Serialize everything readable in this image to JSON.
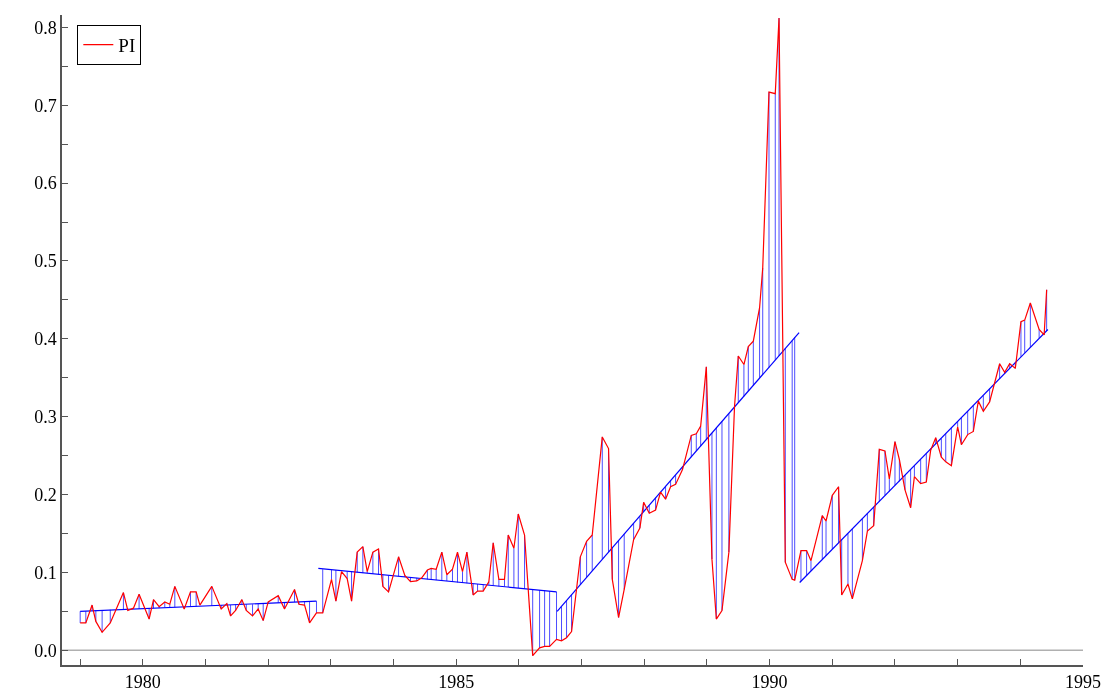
{
  "chart_data": {
    "type": "line",
    "legend": "top left",
    "grid": false,
    "marker": "none",
    "line_style": "solid",
    "xlim": [
      1978.71,
      1995
    ],
    "ylim": [
      -0.019,
      0.816
    ],
    "xticks": [
      {
        "value": 1979,
        "label": null
      },
      1980,
      {
        "value": 1981,
        "label": null
      },
      {
        "value": 1982,
        "label": null
      },
      {
        "value": 1983,
        "label": null
      },
      {
        "value": 1984,
        "label": null
      },
      1985,
      {
        "value": 1986,
        "label": null
      },
      {
        "value": 1987,
        "label": null
      },
      {
        "value": 1988,
        "label": null
      },
      {
        "value": 1989,
        "label": null
      },
      1990,
      {
        "value": 1991,
        "label": null
      },
      {
        "value": 1992,
        "label": null
      },
      {
        "value": 1993,
        "label": null
      },
      {
        "value": 1994,
        "label": null
      },
      1995
    ],
    "yticks": [
      {
        "value": 0,
        "label": "0.0"
      },
      {
        "value": 0.05,
        "label": null
      },
      0.1,
      {
        "value": 0.15,
        "label": null
      },
      0.2,
      {
        "value": 0.25,
        "label": null
      },
      0.3,
      {
        "value": 0.35,
        "label": null
      },
      0.4,
      {
        "value": 0.45,
        "label": null
      },
      0.5,
      {
        "value": 0.55,
        "label": null
      },
      0.6,
      {
        "value": 0.65,
        "label": null
      },
      0.7,
      {
        "value": 0.75,
        "label": null
      },
      0.8
    ],
    "ref_lines": [
      {
        "axis": "y",
        "value": 0,
        "color": "#b0b0b0"
      }
    ],
    "series": [
      {
        "name": "PI",
        "color": "#ff0000",
        "x": [
          1979.0,
          1979.09,
          1979.19,
          1979.25,
          1979.35,
          1979.48,
          1979.69,
          1979.76,
          1979.85,
          1979.94,
          1980.1,
          1980.17,
          1980.26,
          1980.35,
          1980.43,
          1980.51,
          1980.66,
          1980.76,
          1980.85,
          1980.91,
          1981.1,
          1981.25,
          1981.34,
          1981.4,
          1981.48,
          1981.58,
          1981.65,
          1981.75,
          1981.84,
          1981.92,
          1982.0,
          1982.16,
          1982.26,
          1982.42,
          1982.49,
          1982.58,
          1982.66,
          1982.77,
          1982.87,
          1983.01,
          1983.08,
          1983.17,
          1983.26,
          1983.33,
          1983.42,
          1983.51,
          1983.58,
          1983.67,
          1983.76,
          1983.83,
          1983.92,
          1984.08,
          1984.18,
          1984.27,
          1984.37,
          1984.45,
          1984.54,
          1984.6,
          1984.68,
          1984.77,
          1984.85,
          1984.94,
          1985.02,
          1985.1,
          1985.17,
          1985.27,
          1985.34,
          1985.43,
          1985.52,
          1985.59,
          1985.68,
          1985.77,
          1985.83,
          1985.92,
          1985.99,
          1986.09,
          1986.22,
          1986.33,
          1986.41,
          1986.49,
          1986.6,
          1986.68,
          1986.76,
          1986.84,
          1986.98,
          1987.08,
          1987.17,
          1987.33,
          1987.43,
          1987.49,
          1987.59,
          1987.68,
          1987.83,
          1987.93,
          1987.99,
          1988.08,
          1988.18,
          1988.26,
          1988.34,
          1988.42,
          1988.5,
          1988.61,
          1988.75,
          1988.83,
          1988.9,
          1988.99,
          1989.08,
          1989.15,
          1989.24,
          1989.35,
          1989.44,
          1989.5,
          1989.59,
          1989.66,
          1989.74,
          1989.84,
          1989.89,
          1989.99,
          1990.09,
          1990.15,
          1990.25,
          1990.36,
          1990.4,
          1990.5,
          1990.59,
          1990.66,
          1990.84,
          1990.9,
          1991.0,
          1991.1,
          1991.15,
          1991.25,
          1991.32,
          1991.48,
          1991.56,
          1991.66,
          1991.75,
          1991.84,
          1991.91,
          1992.0,
          1992.07,
          1992.16,
          1992.25,
          1992.31,
          1992.41,
          1992.5,
          1992.57,
          1992.65,
          1992.74,
          1992.81,
          1992.9,
          1993.0,
          1993.06,
          1993.16,
          1993.25,
          1993.33,
          1993.41,
          1993.51,
          1993.67,
          1993.75,
          1993.83,
          1993.92,
          1994.01,
          1994.07,
          1994.16,
          1994.3,
          1994.38,
          1994.42
        ],
        "values": [
          0.035,
          0.035,
          0.058,
          0.037,
          0.023,
          0.035,
          0.074,
          0.051,
          0.054,
          0.072,
          0.04,
          0.065,
          0.056,
          0.062,
          0.059,
          0.082,
          0.053,
          0.075,
          0.075,
          0.058,
          0.082,
          0.053,
          0.06,
          0.044,
          0.051,
          0.065,
          0.051,
          0.044,
          0.053,
          0.038,
          0.062,
          0.07,
          0.053,
          0.078,
          0.059,
          0.058,
          0.035,
          0.048,
          0.048,
          0.091,
          0.063,
          0.101,
          0.092,
          0.063,
          0.126,
          0.133,
          0.101,
          0.126,
          0.13,
          0.082,
          0.075,
          0.12,
          0.096,
          0.088,
          0.089,
          0.093,
          0.103,
          0.105,
          0.104,
          0.126,
          0.097,
          0.104,
          0.126,
          0.101,
          0.126,
          0.071,
          0.076,
          0.076,
          0.088,
          0.138,
          0.091,
          0.091,
          0.148,
          0.131,
          0.175,
          0.148,
          -0.007,
          0.003,
          0.005,
          0.005,
          0.014,
          0.012,
          0.016,
          0.024,
          0.12,
          0.14,
          0.148,
          0.274,
          0.259,
          0.091,
          0.042,
          0.078,
          0.142,
          0.157,
          0.19,
          0.176,
          0.18,
          0.203,
          0.194,
          0.21,
          0.213,
          0.232,
          0.276,
          0.278,
          0.288,
          0.364,
          0.117,
          0.04,
          0.051,
          0.126,
          0.313,
          0.378,
          0.367,
          0.39,
          0.397,
          0.44,
          0.491,
          0.717,
          0.715,
          0.812,
          0.113,
          0.091,
          0.09,
          0.128,
          0.128,
          0.115,
          0.173,
          0.166,
          0.199,
          0.21,
          0.071,
          0.085,
          0.066,
          0.115,
          0.153,
          0.16,
          0.258,
          0.256,
          0.22,
          0.268,
          0.245,
          0.206,
          0.183,
          0.223,
          0.214,
          0.216,
          0.257,
          0.273,
          0.248,
          0.242,
          0.237,
          0.287,
          0.264,
          0.277,
          0.281,
          0.32,
          0.307,
          0.319,
          0.368,
          0.357,
          0.368,
          0.362,
          0.422,
          0.424,
          0.446,
          0.412,
          0.405,
          0.463
        ],
        "errors": [
          [
            0.035,
            0.05
          ],
          [
            0.035,
            0.05
          ],
          [
            0.051,
            0.058
          ],
          [
            0.037,
            0.051
          ],
          [
            0.023,
            0.051
          ],
          [
            0.035,
            0.052
          ],
          [
            0.052,
            0.074
          ],
          [
            0.051,
            0.053
          ],
          null,
          [
            0.053,
            0.072
          ],
          [
            0.04,
            0.054
          ],
          [
            0.054,
            0.065
          ],
          [
            0.054,
            0.056
          ],
          [
            0.055,
            0.062
          ],
          [
            0.055,
            0.059
          ],
          [
            0.055,
            0.082
          ],
          [
            0.053,
            0.056
          ],
          [
            0.056,
            0.075
          ],
          [
            0.056,
            0.075
          ],
          null,
          [
            0.057,
            0.082
          ],
          [
            0.053,
            0.058
          ],
          [
            0.058,
            0.06
          ],
          [
            0.044,
            0.058
          ],
          [
            0.051,
            0.059
          ],
          [
            0.059,
            0.065
          ],
          [
            0.051,
            0.059
          ],
          [
            0.044,
            0.059
          ],
          [
            0.053,
            0.06
          ],
          [
            0.038,
            0.06
          ],
          [
            0.06,
            0.062
          ],
          [
            0.061,
            0.07
          ],
          [
            0.053,
            0.061
          ],
          [
            0.062,
            0.078
          ],
          [
            0.059,
            0.062
          ],
          [
            0.058,
            0.062
          ],
          [
            0.035,
            0.063
          ],
          [
            0.048,
            0.063
          ],
          [
            0.048,
            0.104
          ],
          [
            0.091,
            0.103
          ],
          [
            0.063,
            0.103
          ],
          null,
          [
            0.092,
            0.101
          ],
          [
            0.063,
            0.101
          ],
          [
            0.1,
            0.126
          ],
          [
            0.099,
            0.133
          ],
          [
            0.099,
            0.101
          ],
          [
            0.098,
            0.126
          ],
          [
            0.097,
            0.13
          ],
          [
            0.082,
            0.097
          ],
          [
            0.075,
            0.096
          ],
          [
            0.095,
            0.12
          ],
          [
            0.094,
            0.096
          ],
          [
            0.088,
            0.093
          ],
          [
            0.089,
            0.093
          ],
          null,
          [
            0.091,
            0.103
          ],
          [
            0.091,
            0.105
          ],
          [
            0.09,
            0.104
          ],
          [
            0.089,
            0.126
          ],
          [
            0.089,
            0.097
          ],
          [
            0.088,
            0.104
          ],
          [
            0.087,
            0.126
          ],
          [
            0.087,
            0.101
          ],
          [
            0.086,
            0.126
          ],
          [
            0.071,
            0.085
          ],
          [
            0.076,
            0.085
          ],
          [
            0.076,
            0.084
          ],
          [
            0.084,
            0.088
          ],
          [
            0.083,
            0.138
          ],
          [
            0.082,
            0.091
          ],
          [
            0.082,
            0.091
          ],
          [
            0.081,
            0.148
          ],
          [
            0.08,
            0.131
          ],
          [
            0.08,
            0.175
          ],
          [
            0.079,
            0.148
          ],
          [
            -0.007,
            0.078
          ],
          [
            0.003,
            0.077
          ],
          [
            0.005,
            0.077
          ],
          [
            0.005,
            0.076
          ],
          [
            0.014,
            0.075
          ],
          [
            0.012,
            0.056
          ],
          [
            0.016,
            0.064
          ],
          [
            0.024,
            0.071
          ],
          [
            0.084,
            0.12
          ],
          [
            0.094,
            0.14
          ],
          [
            0.102,
            0.148
          ],
          [
            0.117,
            0.274
          ],
          [
            0.126,
            0.259
          ],
          [
            0.091,
            0.132
          ],
          [
            0.042,
            0.141
          ],
          [
            0.078,
            0.149
          ],
          [
            0.142,
            0.163
          ],
          [
            0.157,
            0.172
          ],
          [
            0.178,
            0.19
          ],
          [
            0.176,
            0.186
          ],
          [
            0.18,
            0.196
          ],
          null,
          [
            0.194,
            0.21
          ],
          [
            0.21,
            0.218
          ],
          [
            0.213,
            0.225
          ],
          [
            0.232,
            0.236
          ],
          [
            0.248,
            0.276
          ],
          [
            0.256,
            0.278
          ],
          [
            0.262,
            0.288
          ],
          [
            0.271,
            0.364
          ],
          [
            0.117,
            0.279
          ],
          [
            0.04,
            0.286
          ],
          [
            0.051,
            0.294
          ],
          [
            0.126,
            0.304
          ],
          null,
          [
            0.318,
            0.378
          ],
          [
            0.326,
            0.367
          ],
          [
            0.333,
            0.39
          ],
          [
            0.34,
            0.397
          ],
          [
            0.35,
            0.44
          ],
          [
            0.354,
            0.491
          ],
          [
            0.363,
            0.717
          ],
          [
            0.373,
            0.715
          ],
          [
            0.378,
            0.812
          ],
          [
            0.113,
            0.388
          ],
          [
            0.091,
            0.398
          ],
          [
            0.09,
            0.402
          ],
          [
            0.089,
            0.128
          ],
          [
            0.096,
            0.128
          ],
          [
            0.102,
            0.115
          ],
          [
            0.117,
            0.173
          ],
          [
            0.121,
            0.166
          ],
          [
            0.13,
            0.199
          ],
          [
            0.138,
            0.21
          ],
          [
            0.071,
            0.142
          ],
          [
            0.085,
            0.15
          ],
          [
            0.066,
            0.156
          ],
          [
            0.115,
            0.169
          ],
          [
            0.153,
            0.176
          ],
          [
            0.16,
            0.184
          ],
          [
            0.191,
            0.258
          ],
          [
            0.199,
            0.256
          ],
          [
            0.204,
            0.22
          ],
          [
            0.212,
            0.268
          ],
          [
            0.217,
            0.245
          ],
          [
            0.206,
            0.225
          ],
          [
            0.183,
            0.232
          ],
          [
            0.223,
            0.237
          ],
          [
            0.214,
            0.245
          ],
          [
            0.216,
            0.253
          ],
          [
            0.257,
            0.259
          ],
          [
            0.265,
            0.273
          ],
          [
            0.248,
            0.272
          ],
          [
            0.242,
            0.278
          ],
          [
            0.237,
            0.286
          ],
          [
            0.287,
            0.294
          ],
          [
            0.264,
            0.299
          ],
          [
            0.277,
            0.307
          ],
          [
            0.281,
            0.314
          ],
          null,
          [
            0.307,
            0.327
          ],
          [
            0.319,
            0.336
          ],
          [
            0.349,
            0.368
          ],
          [
            0.355,
            0.357
          ],
          [
            0.362,
            0.368
          ],
          [
            0.362,
            0.369
          ],
          [
            0.377,
            0.422
          ],
          [
            0.382,
            0.424
          ],
          [
            0.389,
            0.446
          ],
          [
            0.401,
            0.412
          ],
          [
            0.405,
            0.407
          ],
          [
            0.41,
            0.463
          ]
        ]
      },
      {
        "color": "#0000ff",
        "x": [
          1979.0,
          1982.77
        ],
        "values": [
          0.05,
          0.063
        ]
      },
      {
        "color": "#0000ff",
        "x": [
          1982.8,
          1986.6
        ],
        "values": [
          0.105,
          0.075
        ]
      },
      {
        "color": "#0000ff",
        "x": [
          1986.61,
          1990.47
        ],
        "values": [
          0.05,
          0.408
        ]
      },
      {
        "color": "#0000ff",
        "x": [
          1990.48,
          1994.44
        ],
        "values": [
          0.087,
          0.412
        ]
      }
    ]
  }
}
